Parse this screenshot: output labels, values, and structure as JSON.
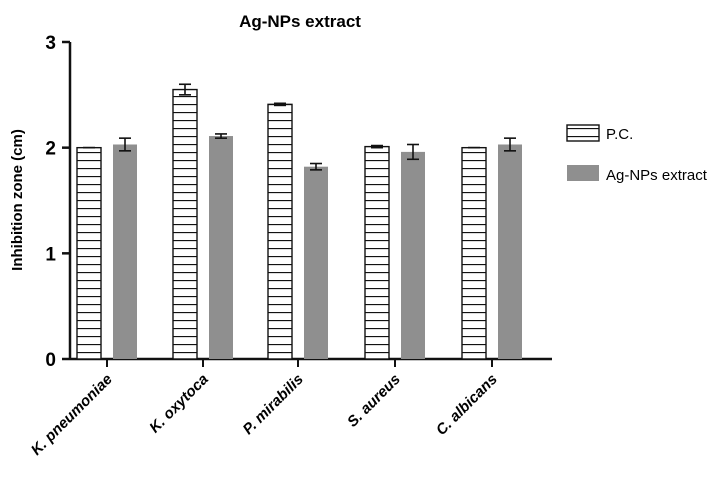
{
  "chart_data": {
    "type": "bar",
    "title": "Ag-NPs extract",
    "xlabel": "",
    "ylabel": "Inhibition zone (cm)",
    "ylim": [
      0,
      3
    ],
    "yticks": [
      "0",
      "1",
      "2",
      "3"
    ],
    "categories": [
      "K. pneumoniae",
      "K. oxytoca",
      "P. mirabilis",
      "S. aureus",
      "C. albicans"
    ],
    "series": [
      {
        "name": "P.C.",
        "values": [
          2.0,
          2.55,
          2.41,
          2.01,
          2.0
        ],
        "errors": [
          0.0,
          0.05,
          0.01,
          0.01,
          0.0
        ],
        "fill": "hatched-horizontal",
        "color": "#ffffff"
      },
      {
        "name": "Ag-NPs extract",
        "values": [
          2.03,
          2.11,
          1.82,
          1.96,
          2.03
        ],
        "errors": [
          0.06,
          0.02,
          0.03,
          0.07,
          0.06
        ],
        "fill": "solid",
        "color": "#8f8f8f"
      }
    ],
    "legend_position": "right",
    "grid": false
  }
}
